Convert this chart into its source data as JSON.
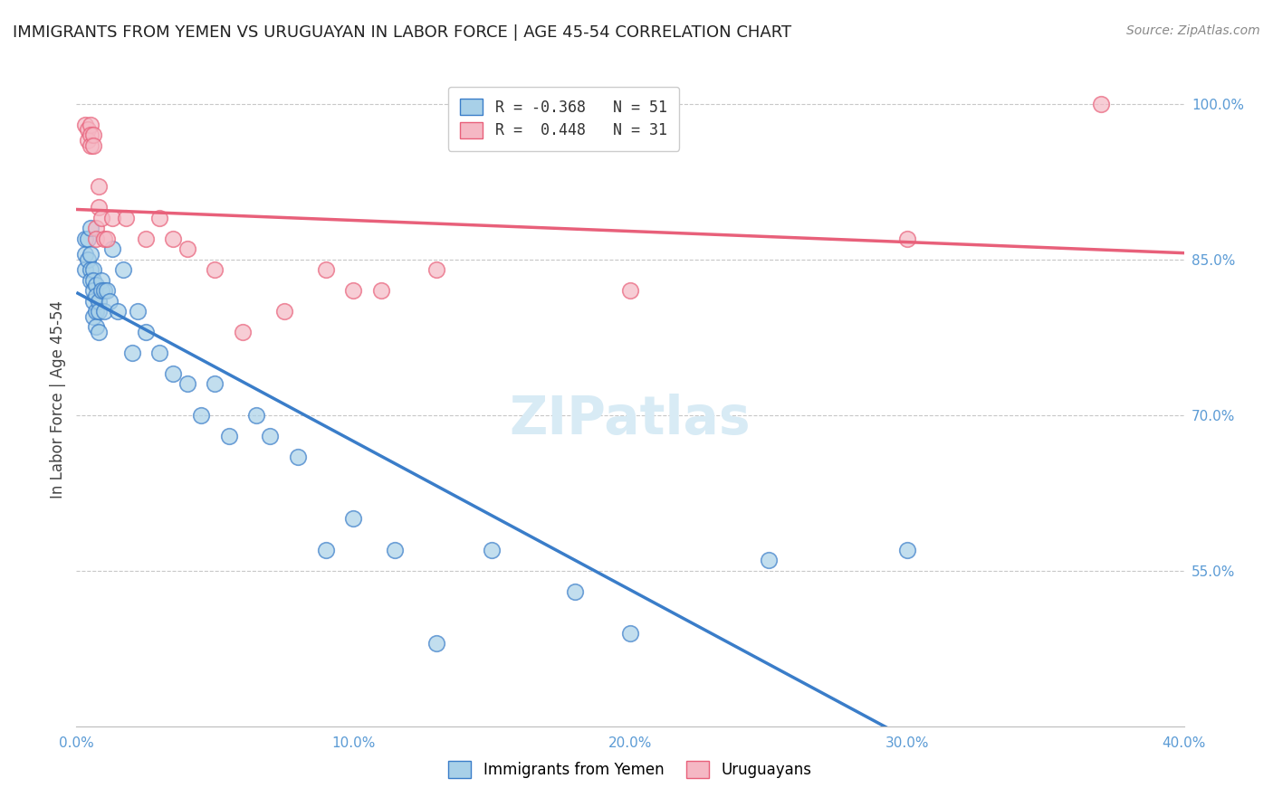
{
  "title": "IMMIGRANTS FROM YEMEN VS URUGUAYAN IN LABOR FORCE | AGE 45-54 CORRELATION CHART",
  "source": "Source: ZipAtlas.com",
  "ylabel": "In Labor Force | Age 45-54",
  "xlim": [
    0.0,
    0.4
  ],
  "ylim": [
    0.4,
    1.03
  ],
  "xtick_vals": [
    0.0,
    0.1,
    0.2,
    0.3,
    0.4
  ],
  "xtick_labels": [
    "0.0%",
    "10.0%",
    "20.0%",
    "30.0%",
    "40.0%"
  ],
  "right_ytick_vals": [
    0.55,
    0.7,
    0.85,
    1.0
  ],
  "right_ytick_labels": [
    "55.0%",
    "70.0%",
    "85.0%",
    "100.0%"
  ],
  "legend_line1": "R = -0.368   N = 51",
  "legend_line2": "R =  0.448   N = 31",
  "color_yemen": "#A8D0E8",
  "color_uruguay": "#F5B8C4",
  "line_color_yemen": "#3A7DC9",
  "line_color_uruguay": "#E8607A",
  "background_color": "#FFFFFF",
  "grid_color": "#C8C8C8",
  "label_color": "#5B9BD5",
  "title_color": "#222222",
  "source_color": "#888888",
  "ylabel_color": "#444444",
  "watermark_color": "#D8EBF5",
  "yemen_x": [
    0.003,
    0.003,
    0.003,
    0.004,
    0.004,
    0.005,
    0.005,
    0.005,
    0.005,
    0.006,
    0.006,
    0.006,
    0.006,
    0.006,
    0.007,
    0.007,
    0.007,
    0.007,
    0.008,
    0.008,
    0.008,
    0.009,
    0.009,
    0.01,
    0.01,
    0.011,
    0.012,
    0.013,
    0.015,
    0.017,
    0.02,
    0.022,
    0.025,
    0.03,
    0.035,
    0.04,
    0.045,
    0.05,
    0.055,
    0.065,
    0.07,
    0.08,
    0.09,
    0.1,
    0.115,
    0.13,
    0.15,
    0.18,
    0.2,
    0.25,
    0.3
  ],
  "yemen_y": [
    0.87,
    0.855,
    0.84,
    0.87,
    0.85,
    0.88,
    0.855,
    0.84,
    0.83,
    0.84,
    0.83,
    0.82,
    0.81,
    0.795,
    0.825,
    0.815,
    0.8,
    0.785,
    0.81,
    0.8,
    0.78,
    0.83,
    0.82,
    0.82,
    0.8,
    0.82,
    0.81,
    0.86,
    0.8,
    0.84,
    0.76,
    0.8,
    0.78,
    0.76,
    0.74,
    0.73,
    0.7,
    0.73,
    0.68,
    0.7,
    0.68,
    0.66,
    0.57,
    0.6,
    0.57,
    0.48,
    0.57,
    0.53,
    0.49,
    0.56,
    0.57
  ],
  "uruguay_x": [
    0.003,
    0.004,
    0.004,
    0.005,
    0.005,
    0.005,
    0.006,
    0.006,
    0.007,
    0.007,
    0.008,
    0.008,
    0.009,
    0.01,
    0.011,
    0.013,
    0.018,
    0.025,
    0.03,
    0.035,
    0.04,
    0.05,
    0.06,
    0.075,
    0.09,
    0.1,
    0.11,
    0.13,
    0.2,
    0.3,
    0.37
  ],
  "uruguay_y": [
    0.98,
    0.975,
    0.965,
    0.98,
    0.97,
    0.96,
    0.97,
    0.96,
    0.88,
    0.87,
    0.92,
    0.9,
    0.89,
    0.87,
    0.87,
    0.89,
    0.89,
    0.87,
    0.89,
    0.87,
    0.86,
    0.84,
    0.78,
    0.8,
    0.84,
    0.82,
    0.82,
    0.84,
    0.82,
    0.87,
    1.0
  ]
}
